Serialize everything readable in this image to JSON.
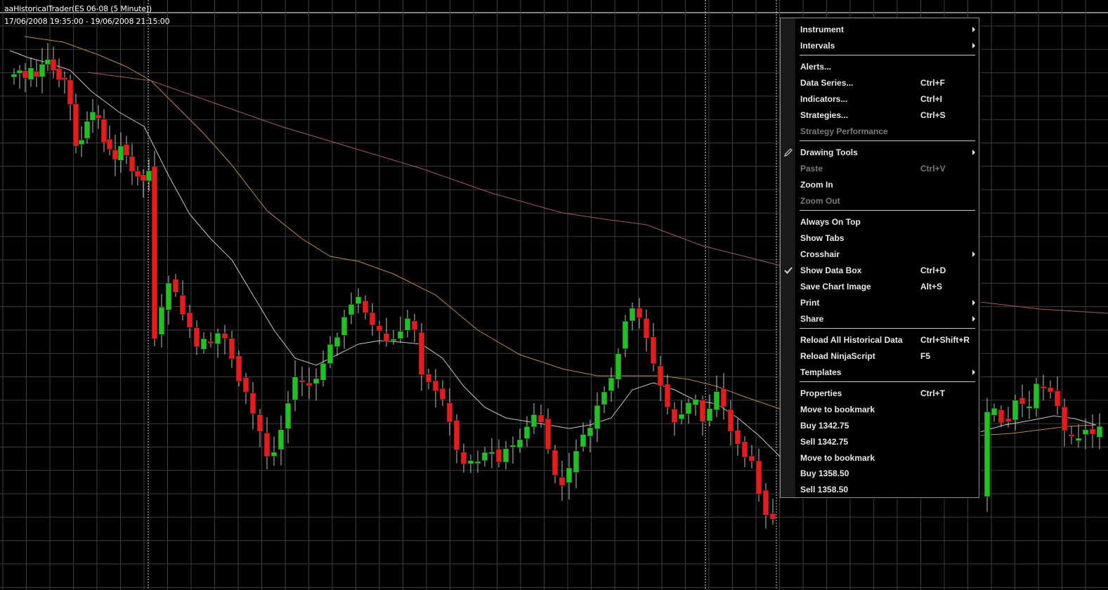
{
  "chart": {
    "title": "aaHistoricalTrader(ES 06-08 (5 Minute))",
    "range": "17/06/2008 19:35:00 - 19/06/2008 21:15:00"
  },
  "colors": {
    "background": "#000000",
    "grid": "#3c3c3c",
    "up_candle": "#22c022",
    "down_candle": "#e31c1c",
    "wick": "#c0c0c0",
    "ma_fast": "#c8c8c8",
    "ma_mid": "#b88a44",
    "ma_slow": "#a8585a",
    "menu_text": "#e8e8e8",
    "menu_disabled": "#7a7a7a"
  },
  "menu": {
    "items": [
      {
        "id": "instrument",
        "label": "Instrument",
        "shortcut": "",
        "submenu": true,
        "disabled": false
      },
      {
        "id": "intervals",
        "label": "Intervals",
        "shortcut": "",
        "submenu": true,
        "disabled": false
      },
      {
        "id": "alerts",
        "label": "Alerts...",
        "shortcut": "",
        "submenu": false,
        "disabled": false
      },
      {
        "id": "data-series",
        "label": "Data Series...",
        "shortcut": "Ctrl+F",
        "submenu": false,
        "disabled": false
      },
      {
        "id": "indicators",
        "label": "Indicators...",
        "shortcut": "Ctrl+I",
        "submenu": false,
        "disabled": false
      },
      {
        "id": "strategies",
        "label": "Strategies...",
        "shortcut": "Ctrl+S",
        "submenu": false,
        "disabled": false
      },
      {
        "id": "strategy-performance",
        "label": "Strategy Performance",
        "shortcut": "",
        "submenu": false,
        "disabled": true
      },
      {
        "id": "drawing-tools",
        "label": "Drawing Tools",
        "shortcut": "",
        "submenu": true,
        "disabled": false,
        "icon": "pencil-icon"
      },
      {
        "id": "paste",
        "label": "Paste",
        "shortcut": "Ctrl+V",
        "submenu": false,
        "disabled": true
      },
      {
        "id": "zoom-in",
        "label": "Zoom In",
        "shortcut": "",
        "submenu": false,
        "disabled": false
      },
      {
        "id": "zoom-out",
        "label": "Zoom Out",
        "shortcut": "",
        "submenu": false,
        "disabled": true
      },
      {
        "id": "always-on-top",
        "label": "Always On Top",
        "shortcut": "",
        "submenu": false,
        "disabled": false
      },
      {
        "id": "show-tabs",
        "label": "Show Tabs",
        "shortcut": "",
        "submenu": false,
        "disabled": false
      },
      {
        "id": "crosshair",
        "label": "Crosshair",
        "shortcut": "",
        "submenu": true,
        "disabled": false
      },
      {
        "id": "show-data-box",
        "label": "Show Data Box",
        "shortcut": "Ctrl+D",
        "submenu": false,
        "disabled": false,
        "checked": true,
        "icon": "checkmark-icon"
      },
      {
        "id": "save-chart-image",
        "label": "Save Chart Image",
        "shortcut": "Alt+S",
        "submenu": false,
        "disabled": false
      },
      {
        "id": "print",
        "label": "Print",
        "shortcut": "",
        "submenu": true,
        "disabled": false
      },
      {
        "id": "share",
        "label": "Share",
        "shortcut": "",
        "submenu": true,
        "disabled": false
      },
      {
        "id": "reload-all-historical-data",
        "label": "Reload All Historical Data",
        "shortcut": "Ctrl+Shift+R",
        "submenu": false,
        "disabled": false
      },
      {
        "id": "reload-ninjascript",
        "label": "Reload NinjaScript",
        "shortcut": "F5",
        "submenu": false,
        "disabled": false
      },
      {
        "id": "templates",
        "label": "Templates",
        "shortcut": "",
        "submenu": true,
        "disabled": false
      },
      {
        "id": "properties",
        "label": "Properties",
        "shortcut": "Ctrl+T",
        "submenu": false,
        "disabled": false
      },
      {
        "id": "move-to-bookmark-1",
        "label": "Move to bookmark",
        "shortcut": "",
        "submenu": false,
        "disabled": false
      },
      {
        "id": "buy-1342-75",
        "label": "Buy 1342.75",
        "shortcut": "",
        "submenu": false,
        "disabled": false
      },
      {
        "id": "sell-1342-75",
        "label": "Sell 1342.75",
        "shortcut": "",
        "submenu": false,
        "disabled": false
      },
      {
        "id": "move-to-bookmark-2",
        "label": "Move to bookmark",
        "shortcut": "",
        "submenu": false,
        "disabled": false
      },
      {
        "id": "buy-1358-50",
        "label": "Buy 1358.50",
        "shortcut": "",
        "submenu": false,
        "disabled": false
      },
      {
        "id": "sell-1358-50",
        "label": "Sell 1358.50",
        "shortcut": "",
        "submenu": false,
        "disabled": false
      }
    ],
    "separators_after": [
      "intervals",
      "strategy-performance",
      "zoom-out",
      "share",
      "templates"
    ]
  }
}
